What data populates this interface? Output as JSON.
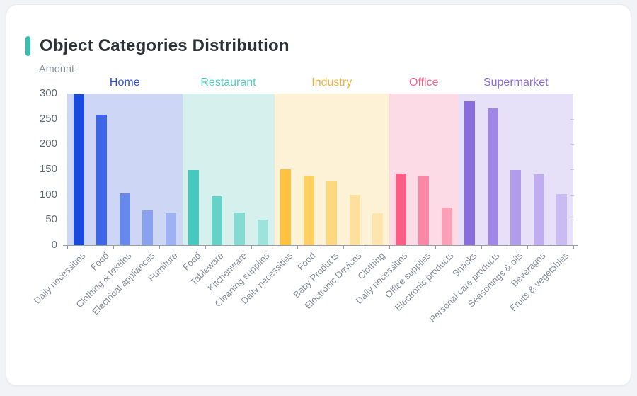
{
  "header": {
    "title": "Object Categories Distribution",
    "accent_color": "#38bfb2"
  },
  "chart_data": {
    "type": "bar",
    "title": "Object Categories Distribution",
    "xlabel": "",
    "ylabel": "Amount",
    "ylim": [
      0,
      300
    ],
    "y_ticks": [
      0,
      50,
      100,
      150,
      200,
      250,
      300
    ],
    "grid": false,
    "legend_position": "group-headers-top",
    "groups": [
      {
        "name": "Home",
        "label_color": "#2a4ae0",
        "band_color": "#cdd7f5",
        "categories": [
          "Daily necessities",
          "Food",
          "Clothing & textiles",
          "Electrical appliances",
          "Furniture"
        ],
        "values": [
          298,
          258,
          102,
          68,
          63
        ],
        "bar_colors": [
          "#1a49dd",
          "#3e64e7",
          "#6889ec",
          "#89a2f0",
          "#9db1f3"
        ]
      },
      {
        "name": "Restaurant",
        "label_color": "#4ecfc4",
        "band_color": "#d6f1ed",
        "categories": [
          "Food",
          "Tableware",
          "Kitchenware",
          "Cleaning supplies"
        ],
        "values": [
          148,
          97,
          64,
          50
        ],
        "bar_colors": [
          "#45c8bd",
          "#65d1c7",
          "#83dbd2",
          "#9de2db"
        ]
      },
      {
        "name": "Industry",
        "label_color": "#efb23f",
        "band_color": "#fdf2d6",
        "categories": [
          "Daily necessities",
          "Food",
          "Baby Products",
          "Electronic Devices",
          "Clothing"
        ],
        "values": [
          150,
          138,
          126,
          99,
          63
        ],
        "bar_colors": [
          "#fec23f",
          "#fecf63",
          "#fed87f",
          "#fee09d",
          "#fde5ad"
        ]
      },
      {
        "name": "Office",
        "label_color": "#fa6488",
        "band_color": "#fcdae6",
        "categories": [
          "Daily necessities",
          "Office supplies",
          "Electronic products"
        ],
        "values": [
          142,
          138,
          74
        ],
        "bar_colors": [
          "#fa5e86",
          "#f987a5",
          "#fb9fb7"
        ]
      },
      {
        "name": "Supermarket",
        "label_color": "#8a6ddd",
        "band_color": "#e6e0f8",
        "categories": [
          "Snacks",
          "Personal care products",
          "Seasonings & oils",
          "Beverages",
          "Fruits & vegetables"
        ],
        "values": [
          285,
          271,
          148,
          140,
          101
        ],
        "bar_colors": [
          "#8a6ddd",
          "#a087e5",
          "#b19beb",
          "#bfadf0",
          "#cabcf2"
        ]
      }
    ]
  }
}
